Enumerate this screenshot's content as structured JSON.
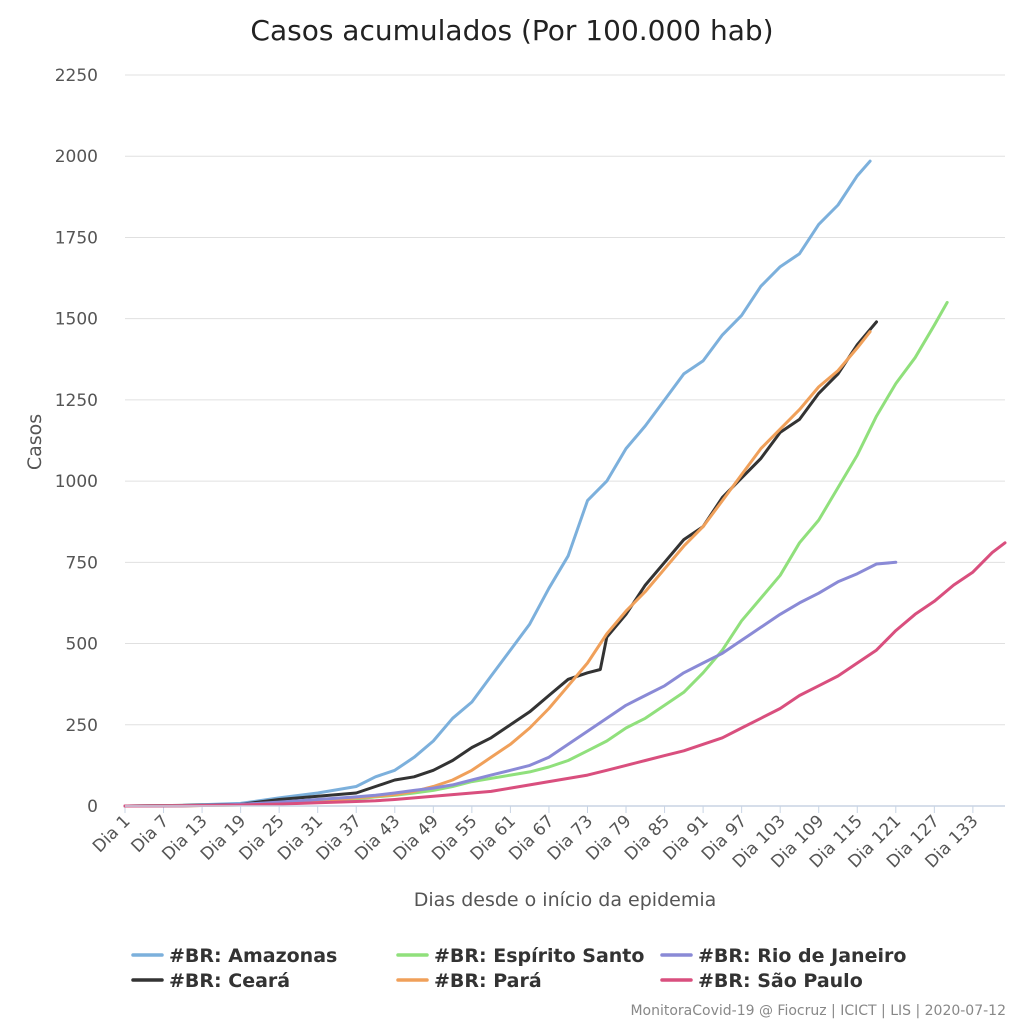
{
  "chart_data": {
    "type": "line",
    "title": "Casos acumulados (Por 100.000 hab)",
    "xlabel": "Dias desde o início da epidemia",
    "ylabel": "Casos",
    "ylim": [
      0,
      2250
    ],
    "yticks": [
      0,
      250,
      500,
      750,
      1000,
      1250,
      1500,
      1750,
      2000,
      2250
    ],
    "xlim": [
      1,
      138
    ],
    "xticks": [
      1,
      7,
      13,
      19,
      25,
      31,
      37,
      43,
      49,
      55,
      61,
      67,
      73,
      79,
      85,
      91,
      97,
      103,
      109,
      115,
      121,
      127,
      133
    ],
    "xtick_labels": [
      "Dia 1",
      "Dia 7",
      "Dia 13",
      "Dia 19",
      "Dia 25",
      "Dia 31",
      "Dia 37",
      "Dia 43",
      "Dia 49",
      "Dia 55",
      "Dia 61",
      "Dia 67",
      "Dia 73",
      "Dia 79",
      "Dia 85",
      "Dia 91",
      "Dia 97",
      "Dia 103",
      "Dia 109",
      "Dia 115",
      "Dia 121",
      "Dia 127",
      "Dia 133"
    ],
    "grid": true,
    "legend_position": "bottom",
    "series": [
      {
        "name": "#BR: Amazonas",
        "color": "#7cb0dc",
        "x": [
          1,
          10,
          19,
          25,
          31,
          37,
          40,
          43,
          46,
          49,
          52,
          55,
          58,
          61,
          64,
          67,
          70,
          73,
          76,
          79,
          82,
          85,
          88,
          91,
          94,
          97,
          100,
          103,
          106,
          109,
          112,
          115,
          117
        ],
        "y": [
          0,
          2,
          8,
          25,
          40,
          60,
          90,
          110,
          150,
          200,
          270,
          320,
          400,
          480,
          560,
          670,
          770,
          940,
          1000,
          1100,
          1170,
          1250,
          1330,
          1370,
          1450,
          1510,
          1600,
          1660,
          1700,
          1790,
          1850,
          1940,
          1985
        ]
      },
      {
        "name": "#BR: Ceará",
        "color": "#333333",
        "x": [
          1,
          10,
          19,
          25,
          31,
          37,
          40,
          43,
          46,
          49,
          52,
          55,
          58,
          61,
          64,
          67,
          70,
          73,
          75,
          76,
          79,
          82,
          85,
          88,
          91,
          94,
          97,
          100,
          103,
          106,
          109,
          112,
          115,
          118
        ],
        "y": [
          0,
          2,
          5,
          20,
          30,
          40,
          60,
          80,
          90,
          110,
          140,
          180,
          210,
          250,
          290,
          340,
          390,
          410,
          420,
          520,
          590,
          680,
          750,
          820,
          860,
          950,
          1010,
          1070,
          1150,
          1190,
          1270,
          1330,
          1420,
          1490
        ]
      },
      {
        "name": "#BR: Espírito Santo",
        "color": "#90e07c",
        "x": [
          1,
          10,
          19,
          25,
          31,
          37,
          40,
          43,
          46,
          49,
          52,
          55,
          58,
          61,
          64,
          67,
          70,
          73,
          76,
          79,
          82,
          85,
          88,
          91,
          94,
          97,
          100,
          103,
          106,
          109,
          112,
          115,
          118,
          121,
          124,
          127,
          129
        ],
        "y": [
          0,
          1,
          3,
          8,
          15,
          22,
          28,
          33,
          40,
          48,
          60,
          75,
          85,
          95,
          105,
          120,
          140,
          170,
          200,
          240,
          270,
          310,
          350,
          410,
          480,
          570,
          640,
          710,
          810,
          880,
          980,
          1080,
          1200,
          1300,
          1380,
          1480,
          1550
        ]
      },
      {
        "name": "#BR: Pará",
        "color": "#f0a05a",
        "x": [
          1,
          10,
          19,
          25,
          31,
          37,
          40,
          43,
          46,
          49,
          52,
          55,
          58,
          61,
          64,
          67,
          70,
          73,
          76,
          79,
          82,
          85,
          88,
          91,
          94,
          97,
          100,
          103,
          106,
          109,
          112,
          115,
          117
        ],
        "y": [
          0,
          1,
          3,
          8,
          15,
          25,
          30,
          35,
          45,
          60,
          80,
          110,
          150,
          190,
          240,
          300,
          370,
          440,
          530,
          600,
          660,
          730,
          800,
          860,
          940,
          1020,
          1100,
          1160,
          1220,
          1290,
          1340,
          1410,
          1460
        ]
      },
      {
        "name": "#BR: Rio de Janeiro",
        "color": "#8a8ad6",
        "x": [
          1,
          10,
          19,
          25,
          31,
          37,
          40,
          43,
          46,
          49,
          52,
          55,
          58,
          61,
          64,
          67,
          70,
          73,
          76,
          79,
          82,
          85,
          88,
          91,
          94,
          97,
          100,
          103,
          106,
          109,
          112,
          115,
          118,
          121
        ],
        "y": [
          0,
          1,
          5,
          12,
          20,
          28,
          33,
          40,
          48,
          55,
          65,
          80,
          95,
          110,
          125,
          150,
          190,
          230,
          270,
          310,
          340,
          370,
          410,
          440,
          470,
          510,
          550,
          590,
          625,
          655,
          690,
          715,
          745,
          750
        ]
      },
      {
        "name": "#BR: São Paulo",
        "color": "#d94f7e",
        "x": [
          1,
          10,
          19,
          25,
          31,
          37,
          40,
          43,
          46,
          49,
          52,
          55,
          58,
          61,
          64,
          67,
          70,
          73,
          76,
          79,
          82,
          85,
          88,
          91,
          94,
          97,
          100,
          103,
          106,
          109,
          112,
          115,
          118,
          121,
          124,
          127,
          130,
          133,
          136,
          138
        ],
        "y": [
          0,
          1,
          3,
          6,
          10,
          14,
          16,
          20,
          25,
          30,
          35,
          40,
          45,
          55,
          65,
          75,
          85,
          95,
          110,
          125,
          140,
          155,
          170,
          190,
          210,
          240,
          270,
          300,
          340,
          370,
          400,
          440,
          480,
          540,
          590,
          630,
          680,
          720,
          780,
          810
        ]
      }
    ],
    "credit": "MonitoraCovid-19 @ Fiocruz | ICICT | LIS | 2020-07-12"
  }
}
